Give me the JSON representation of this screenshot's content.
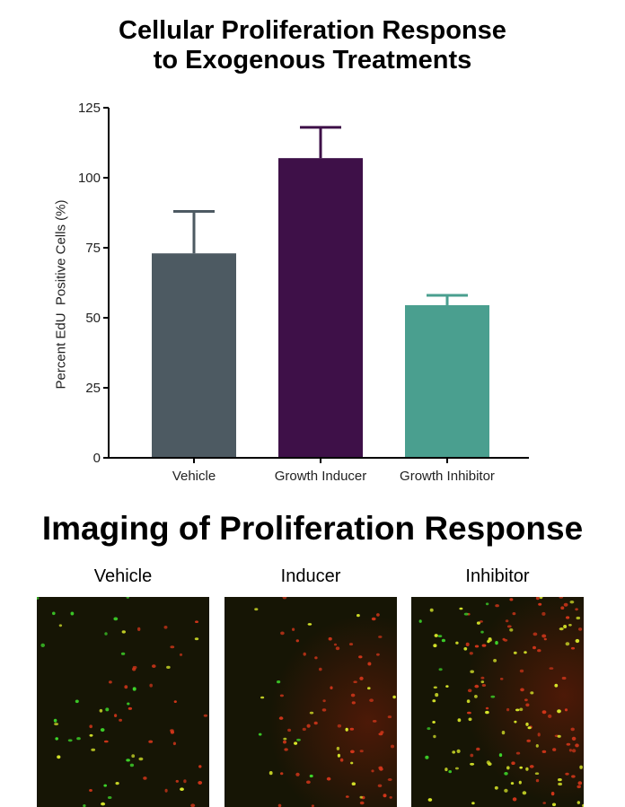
{
  "chart_data": {
    "type": "bar",
    "title": "Cellular Proliferation Response to Exogenous Treatments",
    "title_lines": [
      "Cellular Proliferation Response",
      "to Exogenous Treatments"
    ],
    "xlabel": "",
    "ylabel": "Percent EdU  Positive Cells (%)",
    "ylim": [
      0,
      125
    ],
    "yticks": [
      0,
      25,
      50,
      75,
      100,
      125
    ],
    "categories": [
      "Vehicle",
      "Growth Inducer",
      "Growth Inhibitor"
    ],
    "values": [
      73,
      107,
      54.5
    ],
    "error_upper": [
      15,
      11,
      3.5
    ],
    "colors": [
      "#4d5a62",
      "#3e1048",
      "#4a9f8f"
    ],
    "grid": false,
    "legend": null
  },
  "imaging": {
    "title": "Imaging of Proliferation Response",
    "panels": [
      {
        "label": "Vehicle"
      },
      {
        "label": "Inducer"
      },
      {
        "label": "Inhibitor"
      }
    ],
    "background_color": "#161505"
  }
}
